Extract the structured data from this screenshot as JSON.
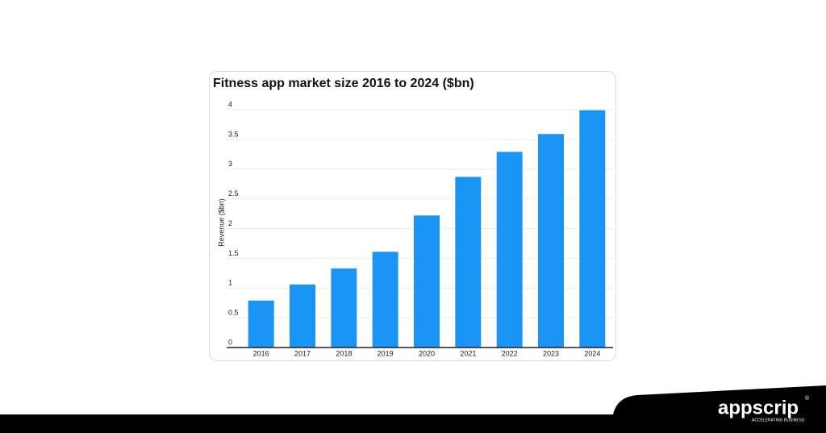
{
  "chart_data": {
    "type": "bar",
    "title": "Fitness app market size 2016 to 2024 ($bn)",
    "y_label": "Revenue ($bn)",
    "categories": [
      "2016",
      "2017",
      "2018",
      "2019",
      "2020",
      "2021",
      "2022",
      "2023",
      "2024"
    ],
    "values": [
      0.79,
      1.06,
      1.33,
      1.61,
      2.22,
      2.87,
      3.29,
      3.59,
      3.99
    ],
    "color": "#1a94f5",
    "ylim": [
      0,
      4
    ],
    "yticks": [
      0,
      0.5,
      1,
      1.5,
      2,
      2.5,
      3,
      3.5,
      4
    ],
    "grid": true
  },
  "logo": {
    "name": "appscrip",
    "tagline": "ACCELERATING BUSINESS",
    "mark": "®"
  }
}
